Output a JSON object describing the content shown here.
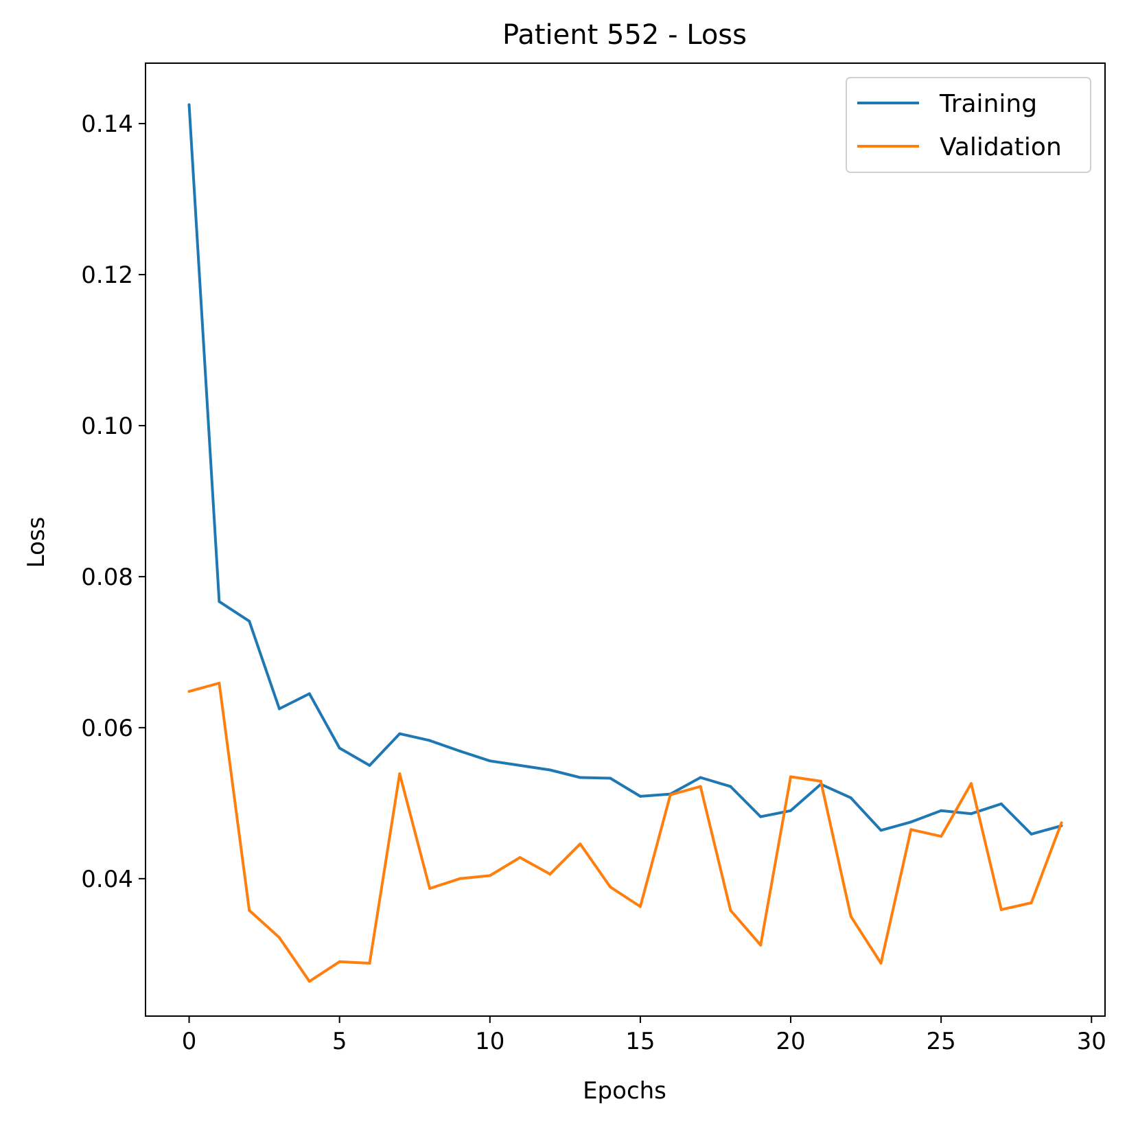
{
  "chart_data": {
    "type": "line",
    "title": "Patient 552 - Loss",
    "xlabel": "Epochs",
    "ylabel": "Loss",
    "xlim": [
      -1.45,
      30.45
    ],
    "ylim": [
      0.0218,
      0.148
    ],
    "xticks": [
      0,
      5,
      10,
      15,
      20,
      25,
      30
    ],
    "xtick_labels": [
      "0",
      "5",
      "10",
      "15",
      "20",
      "25",
      "30"
    ],
    "yticks": [
      0.04,
      0.06,
      0.08,
      0.1,
      0.12,
      0.14
    ],
    "ytick_labels": [
      "0.04",
      "0.06",
      "0.08",
      "0.10",
      "0.12",
      "0.14"
    ],
    "grid": false,
    "legend_position": "top-right",
    "x": [
      0,
      1,
      2,
      3,
      4,
      5,
      6,
      7,
      8,
      9,
      10,
      11,
      12,
      13,
      14,
      15,
      16,
      17,
      18,
      19,
      20,
      21,
      22,
      23,
      24,
      25,
      26,
      27,
      28,
      29
    ],
    "series": [
      {
        "name": "Training",
        "color": "#1f77b4",
        "values": [
          0.1425,
          0.0767,
          0.0741,
          0.0625,
          0.0645,
          0.0573,
          0.055,
          0.0592,
          0.0583,
          0.0569,
          0.0556,
          0.055,
          0.0544,
          0.0534,
          0.0533,
          0.0509,
          0.0512,
          0.0534,
          0.0522,
          0.0482,
          0.049,
          0.0525,
          0.0507,
          0.0464,
          0.0475,
          0.049,
          0.0486,
          0.0499,
          0.0459,
          0.047
        ]
      },
      {
        "name": "Validation",
        "color": "#ff7f0e",
        "values": [
          0.0648,
          0.0659,
          0.0358,
          0.0322,
          0.0264,
          0.029,
          0.0288,
          0.0539,
          0.0387,
          0.04,
          0.0404,
          0.0428,
          0.0406,
          0.0446,
          0.0389,
          0.0363,
          0.0511,
          0.0522,
          0.0358,
          0.0312,
          0.0535,
          0.0529,
          0.035,
          0.0288,
          0.0465,
          0.0456,
          0.0526,
          0.0359,
          0.0368,
          0.0474
        ]
      }
    ]
  }
}
